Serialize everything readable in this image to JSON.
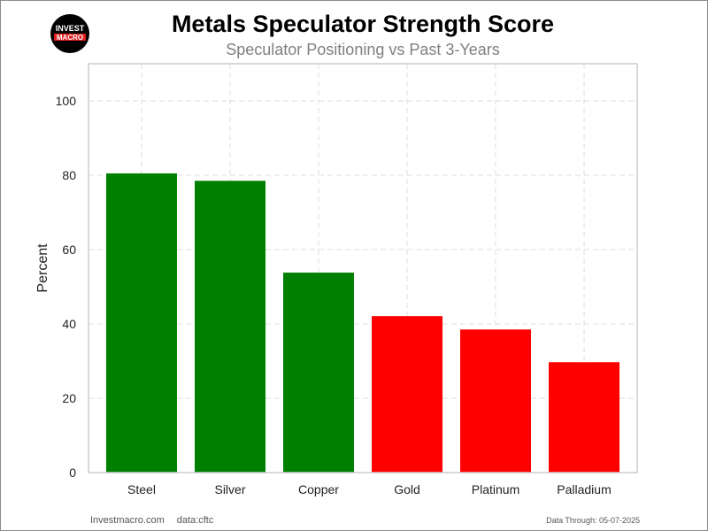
{
  "logo": {
    "line1": "INVEST",
    "line2": "MACRO",
    "colors": {
      "circle": "#000000",
      "text": "#ffffff",
      "band": "#e01e1e"
    }
  },
  "chart_data": {
    "type": "bar",
    "title": "Metals Speculator Strength Score",
    "subtitle": "Speculator Positioning vs Past 3-Years",
    "xlabel": "",
    "ylabel": "Percent",
    "categories": [
      "Steel",
      "Silver",
      "Copper",
      "Gold",
      "Platinum",
      "Palladium"
    ],
    "values": [
      80.5,
      78.5,
      53.8,
      42.1,
      38.5,
      29.7
    ],
    "bar_colors": [
      "#008000",
      "#008000",
      "#008000",
      "#ff0000",
      "#ff0000",
      "#ff0000"
    ],
    "ylim": [
      0,
      110
    ],
    "yticks": [
      0,
      20,
      40,
      60,
      80,
      100
    ],
    "grid": true,
    "grid_style": "dashed",
    "legend": "none"
  },
  "footer": {
    "site": "Investmacro.com",
    "source": "data:cftc",
    "data_through": "Data Through: 05-07-2025"
  }
}
